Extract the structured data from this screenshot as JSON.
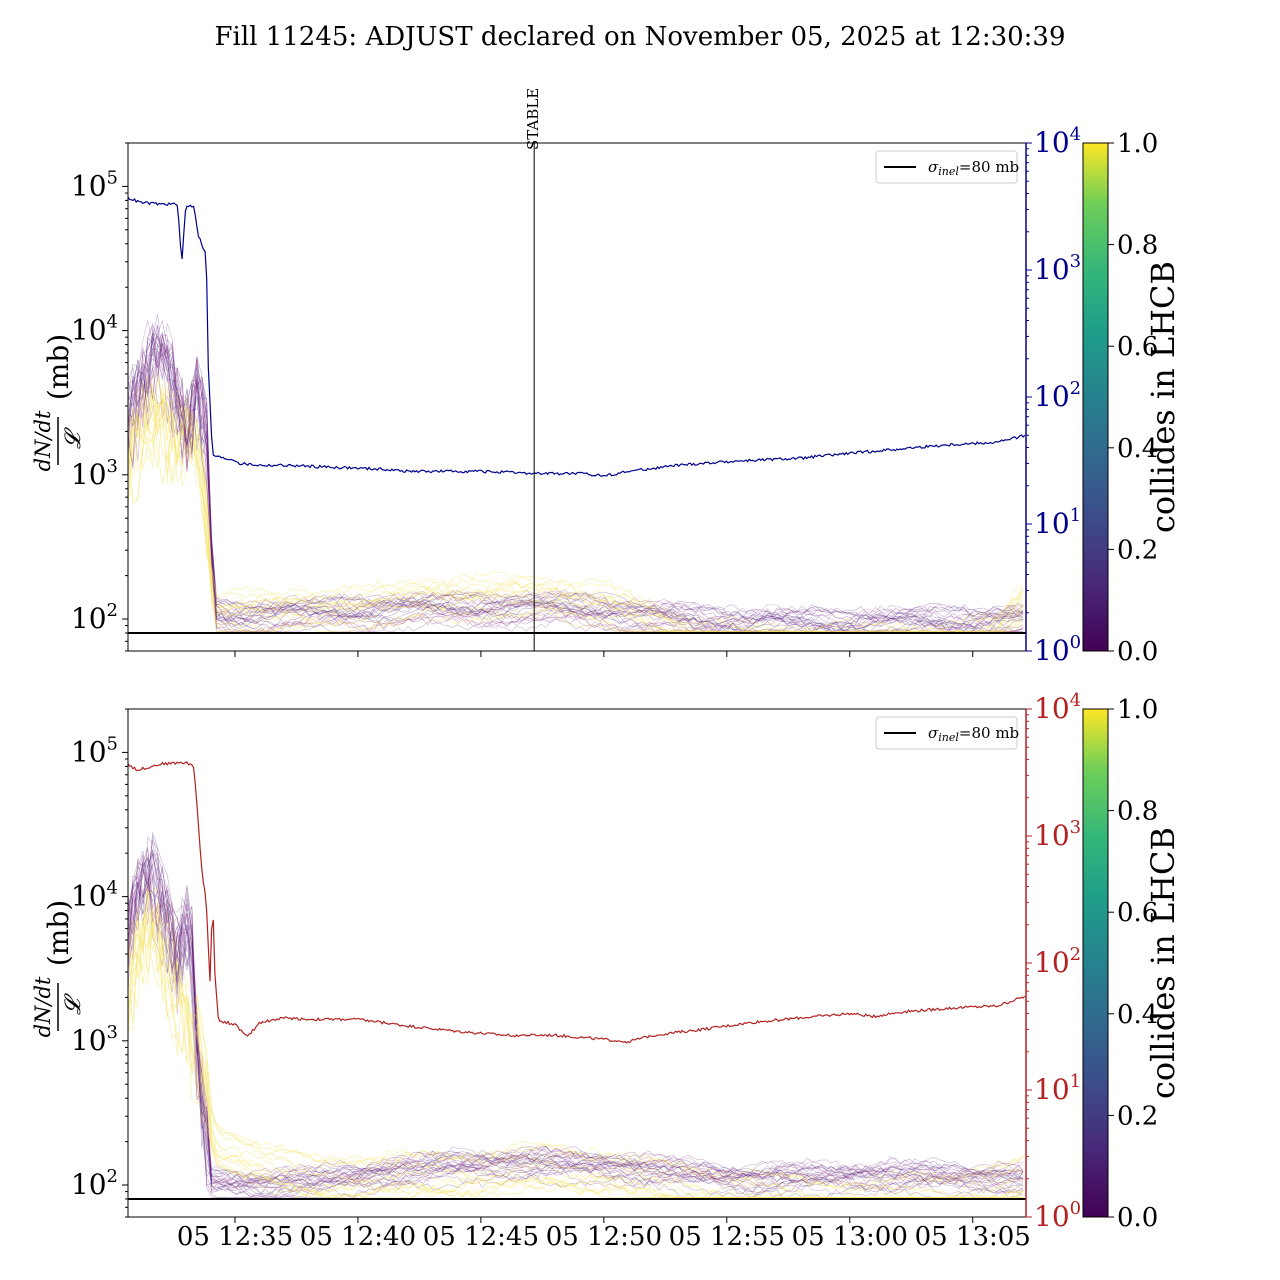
{
  "title": "Fill 11245: ADJUST declared on November 05, 2025 at 12:30:39",
  "colors": {
    "top_right_axis": "#00008b",
    "bottom_right_axis": "#b22222",
    "reference_line": "#000000"
  },
  "chart_data": [
    {
      "type": "line",
      "panel": "top",
      "ylabel_left_numerator": "dN/dt",
      "ylabel_left_denominator": "𝓛",
      "ylabel_left_unit": "(mb)",
      "yscale_left": "log",
      "ylim_left": [
        60,
        200000
      ],
      "yticks_left": [
        {
          "value": 100,
          "label": "10",
          "exp": "2"
        },
        {
          "value": 1000,
          "label": "10",
          "exp": "3"
        },
        {
          "value": 10000,
          "label": "10",
          "exp": "4"
        },
        {
          "value": 100000,
          "label": "10",
          "exp": "5"
        }
      ],
      "yscale_right": "log",
      "ylim_right": [
        1,
        10000
      ],
      "yticks_right": [
        {
          "value": 1,
          "label": "10",
          "exp": "0"
        },
        {
          "value": 10,
          "label": "10",
          "exp": "1"
        },
        {
          "value": 100,
          "label": "10",
          "exp": "2"
        },
        {
          "value": 1000,
          "label": "10",
          "exp": "3"
        },
        {
          "value": 10000,
          "label": "10",
          "exp": "4"
        }
      ],
      "xlim": [
        "12:30:39",
        "13:07:10"
      ],
      "annotation": {
        "label": "STABLE",
        "x": "12:47:10"
      },
      "legend": {
        "label": "σinel=80 mb",
        "sym": "σ",
        "sub": "inel",
        "suffix": "=80 mb",
        "position": "top-right"
      },
      "reference_value": 80,
      "right_series": {
        "color": "#00008b",
        "points": [
          [
            "12:30:39",
            3700
          ],
          [
            "12:31:10",
            3400
          ],
          [
            "12:32:00",
            3300
          ],
          [
            "12:32:40",
            3300
          ],
          [
            "12:32:50",
            1100
          ],
          [
            "12:33:00",
            3200
          ],
          [
            "12:33:20",
            3200
          ],
          [
            "12:33:30",
            1900
          ],
          [
            "12:33:50",
            1300
          ],
          [
            "12:33:55",
            170
          ],
          [
            "12:34:05",
            35
          ],
          [
            "12:34:30",
            33
          ],
          [
            "12:35:00",
            32
          ],
          [
            "12:35:10",
            30
          ],
          [
            "12:36:00",
            29
          ],
          [
            "12:37:00",
            29
          ],
          [
            "12:39:00",
            28
          ],
          [
            "12:41:00",
            27
          ],
          [
            "12:42:00",
            26
          ],
          [
            "12:45:00",
            26
          ],
          [
            "12:47:00",
            25
          ],
          [
            "12:49:00",
            25
          ],
          [
            "12:50:00",
            24
          ],
          [
            "12:51:00",
            26
          ],
          [
            "12:53:00",
            29
          ],
          [
            "12:55:00",
            31
          ],
          [
            "12:58:00",
            33
          ],
          [
            "13:00:00",
            36
          ],
          [
            "13:02:00",
            39
          ],
          [
            "13:04:00",
            42
          ],
          [
            "13:06:00",
            44
          ],
          [
            "13:07:10",
            50
          ]
        ]
      },
      "lhcb_envelope": [
        [
          "12:30:39",
          2000
        ],
        [
          "12:31:30",
          4500
        ],
        [
          "12:32:00",
          5000
        ],
        [
          "12:32:30",
          3200
        ],
        [
          "12:33:00",
          1500
        ],
        [
          "12:33:30",
          2800
        ],
        [
          "12:33:50",
          1600
        ],
        [
          "12:34:10",
          95
        ],
        [
          "12:35:00",
          92
        ],
        [
          "12:37:00",
          95
        ],
        [
          "12:40:00",
          100
        ],
        [
          "12:43:00",
          105
        ],
        [
          "12:46:00",
          105
        ],
        [
          "12:48:00",
          105
        ],
        [
          "12:50:00",
          102
        ],
        [
          "12:52:00",
          92
        ],
        [
          "12:54:00",
          85
        ],
        [
          "12:56:00",
          83
        ],
        [
          "12:59:00",
          82
        ],
        [
          "13:02:00",
          83
        ],
        [
          "13:05:00",
          85
        ],
        [
          "13:07:10",
          88
        ]
      ],
      "yellow_envelope": [
        [
          "12:30:39",
          1500
        ],
        [
          "12:31:30",
          3000
        ],
        [
          "12:32:30",
          2000
        ],
        [
          "12:33:30",
          2200
        ],
        [
          "12:34:10",
          140
        ],
        [
          "12:36:00",
          140
        ],
        [
          "12:40:00",
          150
        ],
        [
          "12:43:00",
          175
        ],
        [
          "12:46:00",
          180
        ],
        [
          "12:48:00",
          175
        ],
        [
          "12:50:00",
          160
        ],
        [
          "12:52:00",
          120
        ],
        [
          "12:54:00",
          90
        ],
        [
          "12:57:00",
          84
        ],
        [
          "13:00:00",
          84
        ],
        [
          "13:04:00",
          85
        ],
        [
          "13:06:00",
          100
        ],
        [
          "13:07:10",
          170
        ]
      ],
      "colorbar": {
        "label": "collides in LHCB",
        "ticks": [
          "0.0",
          "0.2",
          "0.4",
          "0.6",
          "0.8",
          "1.0"
        ]
      }
    },
    {
      "type": "line",
      "panel": "bottom",
      "ylabel_left_numerator": "dN/dt",
      "ylabel_left_denominator": "𝓛",
      "ylabel_left_unit": "(mb)",
      "yscale_left": "log",
      "ylim_left": [
        60,
        200000
      ],
      "yticks_left": [
        {
          "value": 100,
          "label": "10",
          "exp": "2"
        },
        {
          "value": 1000,
          "label": "10",
          "exp": "3"
        },
        {
          "value": 10000,
          "label": "10",
          "exp": "4"
        },
        {
          "value": 100000,
          "label": "10",
          "exp": "5"
        }
      ],
      "yscale_right": "log",
      "ylim_right": [
        1,
        10000
      ],
      "yticks_right": [
        {
          "value": 1,
          "label": "10",
          "exp": "0"
        },
        {
          "value": 10,
          "label": "10",
          "exp": "1"
        },
        {
          "value": 100,
          "label": "10",
          "exp": "2"
        },
        {
          "value": 1000,
          "label": "10",
          "exp": "3"
        },
        {
          "value": 10000,
          "label": "10",
          "exp": "4"
        }
      ],
      "xlim": [
        "12:30:39",
        "13:07:10"
      ],
      "xticks": [
        {
          "value": "12:35:00",
          "label": "05 12:35"
        },
        {
          "value": "12:40:00",
          "label": "05 12:40"
        },
        {
          "value": "12:45:00",
          "label": "05 12:45"
        },
        {
          "value": "12:50:00",
          "label": "05 12:50"
        },
        {
          "value": "12:55:00",
          "label": "05 12:55"
        },
        {
          "value": "13:00:00",
          "label": "05 13:00"
        },
        {
          "value": "13:05:00",
          "label": "05 13:05"
        }
      ],
      "legend": {
        "label": "σinel=80 mb",
        "sym": "σ",
        "sub": "inel",
        "suffix": "=80 mb",
        "position": "top-right"
      },
      "reference_value": 80,
      "right_series": {
        "color": "#b22222",
        "points": [
          [
            "12:30:39",
            3700
          ],
          [
            "12:31:00",
            3300
          ],
          [
            "12:32:00",
            3700
          ],
          [
            "12:33:00",
            3800
          ],
          [
            "12:33:20",
            3500
          ],
          [
            "12:33:40",
            500
          ],
          [
            "12:33:50",
            300
          ],
          [
            "12:34:00",
            60
          ],
          [
            "12:34:05",
            400
          ],
          [
            "12:34:10",
            90
          ],
          [
            "12:34:20",
            35
          ],
          [
            "12:35:00",
            33
          ],
          [
            "12:35:30",
            26
          ],
          [
            "12:36:00",
            34
          ],
          [
            "12:37:00",
            37
          ],
          [
            "12:38:00",
            36
          ],
          [
            "12:40:00",
            36
          ],
          [
            "12:41:00",
            34
          ],
          [
            "12:42:00",
            32
          ],
          [
            "12:44:00",
            29
          ],
          [
            "12:46:00",
            27
          ],
          [
            "12:48:00",
            27
          ],
          [
            "12:49:00",
            26
          ],
          [
            "12:50:00",
            25
          ],
          [
            "12:51:00",
            24
          ],
          [
            "12:52:00",
            27
          ],
          [
            "12:54:00",
            30
          ],
          [
            "12:56:00",
            34
          ],
          [
            "12:58:00",
            37
          ],
          [
            "13:00:00",
            40
          ],
          [
            "13:01:00",
            38
          ],
          [
            "13:02:00",
            41
          ],
          [
            "13:04:00",
            44
          ],
          [
            "13:06:00",
            46
          ],
          [
            "13:07:10",
            55
          ]
        ]
      },
      "lhcb_envelope": [
        [
          "12:30:39",
          5000
        ],
        [
          "12:31:30",
          12000
        ],
        [
          "12:32:00",
          8000
        ],
        [
          "12:32:40",
          3000
        ],
        [
          "12:33:10",
          6000
        ],
        [
          "12:33:30",
          500
        ],
        [
          "12:34:00",
          95
        ],
        [
          "12:36:00",
          92
        ],
        [
          "12:38:00",
          95
        ],
        [
          "12:41:00",
          110
        ],
        [
          "12:44:00",
          125
        ],
        [
          "12:47:00",
          130
        ],
        [
          "12:50:00",
          125
        ],
        [
          "12:53:00",
          110
        ],
        [
          "12:56:00",
          100
        ],
        [
          "13:00:00",
          105
        ],
        [
          "13:03:00",
          105
        ],
        [
          "13:07:10",
          100
        ]
      ],
      "yellow_envelope": [
        [
          "12:30:39",
          3000
        ],
        [
          "12:31:30",
          8000
        ],
        [
          "12:32:30",
          3000
        ],
        [
          "12:33:30",
          1000
        ],
        [
          "12:34:10",
          250
        ],
        [
          "12:36:00",
          180
        ],
        [
          "12:38:00",
          140
        ],
        [
          "12:41:00",
          150
        ],
        [
          "12:44:00",
          150
        ],
        [
          "12:47:00",
          170
        ],
        [
          "12:50:00",
          160
        ],
        [
          "12:53:00",
          125
        ],
        [
          "12:56:00",
          110
        ],
        [
          "13:00:00",
          100
        ],
        [
          "13:04:00",
          110
        ],
        [
          "13:07:10",
          140
        ]
      ],
      "colorbar": {
        "label": "collides in LHCB",
        "ticks": [
          "0.0",
          "0.2",
          "0.4",
          "0.6",
          "0.8",
          "1.0"
        ]
      }
    }
  ]
}
